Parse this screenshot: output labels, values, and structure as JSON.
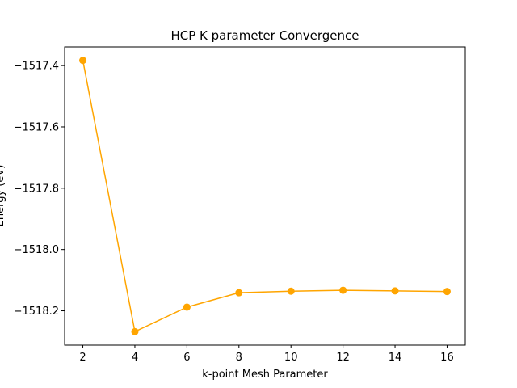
{
  "chart_data": {
    "type": "line",
    "title": "HCP K parameter Convergence",
    "xlabel": "k-point Mesh Parameter",
    "ylabel": "Energy (eV)",
    "x": [
      2,
      4,
      6,
      8,
      10,
      12,
      14,
      16
    ],
    "series": [
      {
        "values": [
          -1517.383,
          -1518.268,
          -1518.188,
          -1518.141,
          -1518.136,
          -1518.133,
          -1518.135,
          -1518.137
        ],
        "color": "#FFA500",
        "marker": "circle"
      }
    ],
    "xticks": [
      2,
      4,
      6,
      8,
      10,
      12,
      14,
      16
    ],
    "yticks": [
      -1517.4,
      -1517.6,
      -1517.8,
      -1518.0,
      -1518.2
    ],
    "ytick_labels": [
      "−1517.4",
      "−1517.6",
      "−1517.8",
      "−1518.0",
      "−1518.2"
    ],
    "xlim": [
      1.3,
      16.7
    ],
    "ylim": [
      -1518.312,
      -1517.339
    ],
    "grid": false,
    "legend": "none"
  }
}
